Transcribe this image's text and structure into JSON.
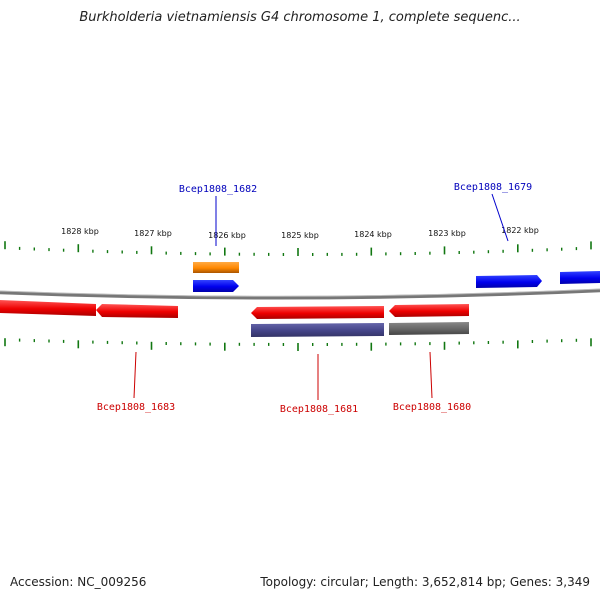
{
  "title": "Burkholderia vietnamiensis G4 chromosome 1, complete sequenc...",
  "footer": {
    "accession": "Accession: NC_009256",
    "summary": "Topology: circular; Length: 3,652,814 bp; Genes: 3,349"
  },
  "colors": {
    "gene_top": "#0000ee",
    "gene_bottom": "#ee0000",
    "feature_orange": "#ff8800",
    "feature_purple": "#444488",
    "feature_gray": "#666666",
    "ticks": "#117711",
    "backbone": "#888888"
  },
  "scale": {
    "ticks": [
      {
        "label": "1828 kbp"
      },
      {
        "label": "1827 kbp"
      },
      {
        "label": "1826 kbp"
      },
      {
        "label": "1825 kbp"
      },
      {
        "label": "1824 kbp"
      },
      {
        "label": "1823 kbp"
      },
      {
        "label": "1822 kbp"
      }
    ]
  },
  "genes": {
    "top": [
      {
        "label": "Bcep1808_1682"
      },
      {
        "label": "Bcep1808_1679"
      }
    ],
    "bottom": [
      {
        "label": "Bcep1808_1683"
      },
      {
        "label": "Bcep1808_1681"
      },
      {
        "label": "Bcep1808_1680"
      }
    ]
  }
}
